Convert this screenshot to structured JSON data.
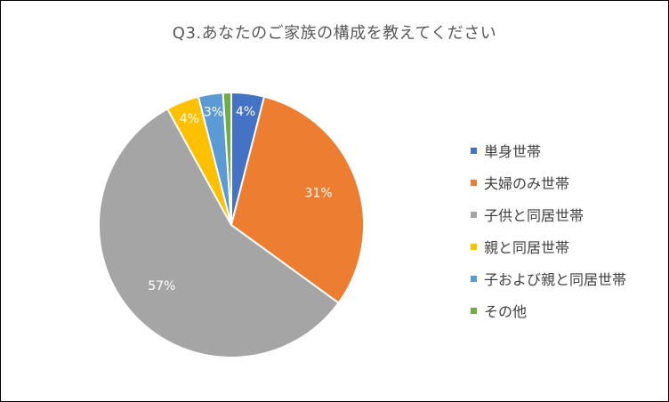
{
  "chart_data": {
    "type": "pie",
    "title": "Q3.あなたのご家族の構成を教えてください",
    "categories": [
      "単身世帯",
      "夫婦のみ世帯",
      "子供と同居世帯",
      "親と同居世帯",
      "子および親と同居世帯",
      "その他"
    ],
    "values": [
      4,
      31,
      57,
      4,
      3,
      1
    ],
    "data_labels": [
      "4%",
      "31%",
      "57%",
      "4%",
      "3%",
      ""
    ],
    "colors": [
      "#4472C4",
      "#ED7D31",
      "#A5A5A5",
      "#FFC000",
      "#5B9BD5",
      "#70AD47"
    ],
    "label_colors": [
      "#ffffff",
      "#ffffff",
      "#ffffff",
      "#ffffff",
      "#ffffff",
      "#ffffff"
    ],
    "legend_position": "right",
    "start_angle_deg": 0,
    "direction": "clockwise"
  }
}
